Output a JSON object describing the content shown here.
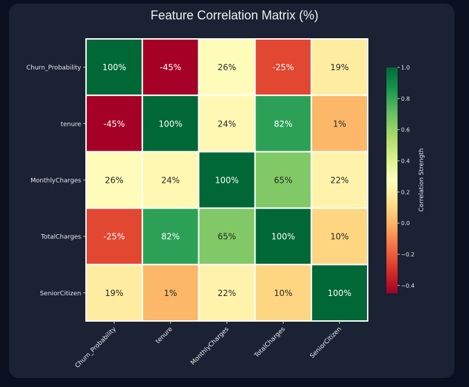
{
  "chart_data": {
    "type": "heatmap",
    "title": "Feature Correlation Matrix (%)",
    "rows": [
      "Churn_Probability",
      "tenure",
      "MonthlyCharges",
      "TotalCharges",
      "SeniorCitizen"
    ],
    "columns": [
      "Churn_Probability",
      "tenure",
      "MonthlyCharges",
      "TotalCharges",
      "SeniorCitizen"
    ],
    "values": [
      [
        1.0,
        -0.45,
        0.26,
        -0.25,
        0.19
      ],
      [
        -0.45,
        1.0,
        0.24,
        0.82,
        0.01
      ],
      [
        0.26,
        0.24,
        1.0,
        0.65,
        0.22
      ],
      [
        -0.25,
        0.82,
        0.65,
        1.0,
        0.1
      ],
      [
        0.19,
        0.01,
        0.22,
        0.1,
        1.0
      ]
    ],
    "labels": [
      [
        "100%",
        "-45%",
        "26%",
        "-25%",
        "19%"
      ],
      [
        "-45%",
        "100%",
        "24%",
        "82%",
        "1%"
      ],
      [
        "26%",
        "24%",
        "100%",
        "65%",
        "22%"
      ],
      [
        "-25%",
        "82%",
        "65%",
        "100%",
        "10%"
      ],
      [
        "19%",
        "1%",
        "22%",
        "10%",
        "100%"
      ]
    ],
    "colormap": "RdYlGn",
    "vmin": -0.45,
    "vmax": 1.0,
    "colorbar": {
      "label": "Correlation Strength",
      "ticks": [
        1.0,
        0.8,
        0.6,
        0.4,
        0.2,
        0.0,
        -0.2,
        -0.4
      ],
      "tick_labels": [
        "1.0",
        "0.8",
        "0.6",
        "0.4",
        "0.2",
        "0.0",
        "−0.2",
        "−0.4"
      ]
    }
  },
  "colors": {
    "background": "#0b1020",
    "card": "#1b2233",
    "text": "#eef0f4",
    "grid_line": "#ffffff"
  }
}
